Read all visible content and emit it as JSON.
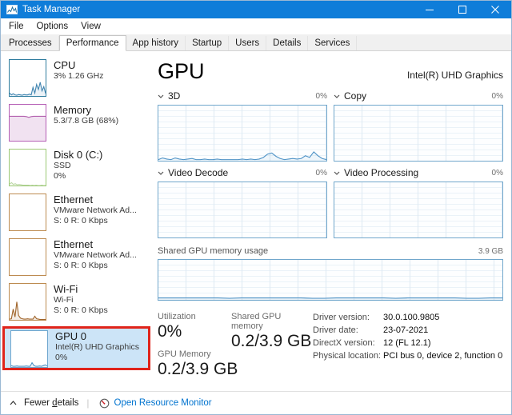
{
  "window": {
    "title": "Task Manager"
  },
  "menu": {
    "items": [
      "File",
      "Options",
      "View"
    ]
  },
  "tabs": {
    "items": [
      "Processes",
      "Performance",
      "App history",
      "Startup",
      "Users",
      "Details",
      "Services"
    ],
    "active": "Performance"
  },
  "sidebar": {
    "items": [
      {
        "id": "cpu",
        "title": "CPU",
        "lines": [
          "3% 1.26 GHz"
        ]
      },
      {
        "id": "memory",
        "title": "Memory",
        "lines": [
          "5.3/7.8 GB (68%)"
        ]
      },
      {
        "id": "disk0",
        "title": "Disk 0 (C:)",
        "lines": [
          "SSD",
          "0%"
        ]
      },
      {
        "id": "ethernet1",
        "title": "Ethernet",
        "lines": [
          "VMware Network Ad...",
          "S: 0 R: 0 Kbps"
        ]
      },
      {
        "id": "ethernet2",
        "title": "Ethernet",
        "lines": [
          "VMware Network Ad...",
          "S: 0 R: 0 Kbps"
        ]
      },
      {
        "id": "wifi",
        "title": "Wi-Fi",
        "lines": [
          "Wi-Fi",
          "S: 0 R: 0 Kbps"
        ]
      },
      {
        "id": "gpu0",
        "title": "GPU 0",
        "lines": [
          "Intel(R) UHD Graphics",
          "0%"
        ],
        "selected": true
      }
    ]
  },
  "main": {
    "title": "GPU",
    "subtitle": "Intel(R) UHD Graphics",
    "engine_charts": [
      {
        "name": "3D",
        "value": "0%"
      },
      {
        "name": "Copy",
        "value": "0%"
      },
      {
        "name": "Video Decode",
        "value": "0%"
      },
      {
        "name": "Video Processing",
        "value": "0%"
      }
    ],
    "shared_chart": {
      "label": "Shared GPU memory usage",
      "max": "3.9 GB"
    },
    "stats": {
      "utilization_label": "Utilization",
      "utilization_value": "0%",
      "gpu_memory_label": "GPU Memory",
      "gpu_memory_value": "0.2/3.9 GB",
      "shared_memory_label": "Shared GPU memory",
      "shared_memory_value": "0.2/3.9 GB",
      "details": [
        {
          "label": "Driver version:",
          "value": "30.0.100.9805"
        },
        {
          "label": "Driver date:",
          "value": "23-07-2021"
        },
        {
          "label": "DirectX version:",
          "value": "12 (FL 12.1)"
        },
        {
          "label": "Physical location:",
          "value": "PCI bus 0, device 2, function 0"
        }
      ]
    }
  },
  "footer": {
    "fewer_prefix": "Fewer ",
    "fewer_key": "d",
    "fewer_suffix": "etails",
    "divider": "|",
    "resource_link": "Open Resource Monitor"
  },
  "icons": {
    "app": "task-manager-chart",
    "minimize": "minimize-bar",
    "maximize": "maximize-square",
    "close": "close-x",
    "chevron_down": "chevron-down",
    "chevron_up": "chevron-up",
    "resource_monitor": "gauge-with-red-needle"
  },
  "colors": {
    "titlebar": "#0f7dd9",
    "selected_item_bg": "#cce4f7",
    "annotation_red": "#e0241b",
    "link_blue": "#0073cf",
    "chart_border": "#71a7cc",
    "chart_line_blue": "#4f93c6",
    "memory_purple": "#b260ae",
    "disk_green": "#86b85c",
    "network_brown": "#b98246"
  },
  "spark_data": {
    "gpu_3d": [
      2,
      5,
      3,
      2,
      5,
      3,
      2,
      3,
      4,
      2,
      2,
      3,
      2,
      2,
      3,
      2,
      2,
      2,
      2,
      2,
      3,
      2,
      3,
      2,
      3,
      6,
      12,
      14,
      8,
      4,
      2,
      3,
      4,
      3,
      4,
      9,
      6,
      16,
      9,
      4,
      2
    ],
    "copy": [],
    "video_decode": [],
    "video_processing": [],
    "shared_memory": [
      5,
      5,
      5,
      5,
      5,
      5,
      4,
      5,
      5,
      5,
      5,
      5,
      5,
      4,
      4,
      5,
      5,
      5,
      5,
      5,
      4,
      5,
      5,
      5,
      5,
      5,
      4,
      4,
      5,
      5
    ],
    "thumb_cpu": [
      8,
      3,
      6,
      3,
      2,
      4,
      3,
      2,
      4,
      3,
      3,
      5,
      3,
      24,
      8,
      32,
      18,
      38,
      14,
      26,
      7
    ],
    "thumb_memory": [
      68,
      68,
      68,
      68,
      68,
      68,
      68,
      67,
      65,
      67,
      68,
      68,
      68,
      68,
      68,
      68
    ],
    "thumb_disk": [
      4,
      8,
      3,
      5,
      2,
      3,
      2,
      1,
      1,
      1,
      1,
      0,
      1,
      0,
      1,
      0,
      0,
      1,
      0,
      0
    ],
    "thumb_ethernet1": [],
    "thumb_ethernet2": [],
    "thumb_wifi": [
      2,
      3,
      30,
      8,
      50,
      12,
      5,
      3,
      2,
      2,
      3,
      2,
      2,
      2,
      10,
      3,
      2,
      1,
      1,
      1,
      1
    ],
    "thumb_gpu": [
      4,
      2,
      2,
      3,
      2,
      2,
      2,
      2,
      3,
      2,
      2,
      12,
      4,
      2,
      2,
      3,
      2,
      4,
      6,
      3
    ]
  }
}
